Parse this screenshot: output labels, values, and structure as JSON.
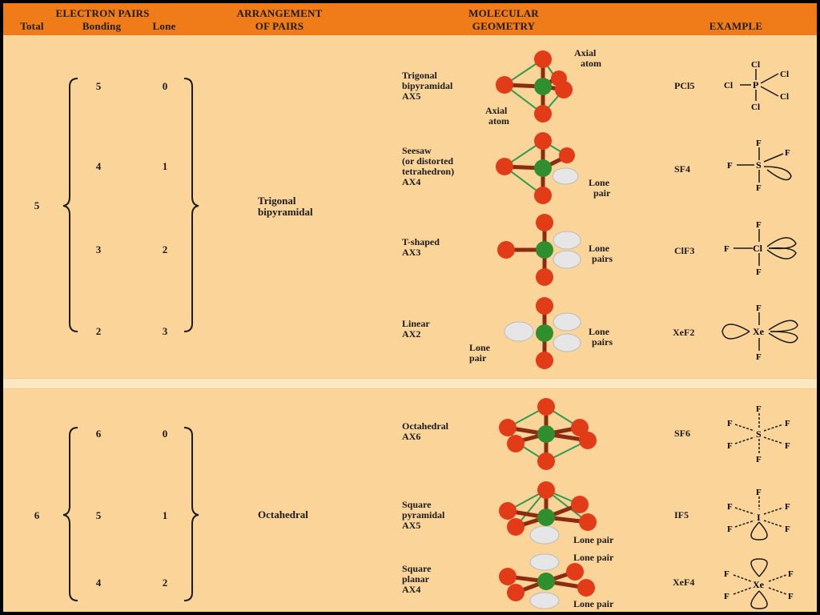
{
  "header": {
    "electron_pairs": "ELECTRON PAIRS",
    "total": "Total",
    "bonding": "Bonding",
    "lone": "Lone",
    "arrangement": [
      "ARRANGEMENT",
      "OF PAIRS"
    ],
    "geometry": [
      "MOLECULAR",
      "GEOMETRY"
    ],
    "example": "EXAMPLE"
  },
  "colors": {
    "header": "#ef7c19",
    "background": "#fbd49a",
    "outer_atom": "#e23b18",
    "central_atom": "#2f8f2f",
    "bond": "#2e9b4e",
    "lone_pair": "#e6e6e6"
  },
  "groups": [
    {
      "total": "5",
      "arrangement": [
        "Trigonal",
        "bipyramidal"
      ],
      "rows": [
        {
          "bonding": "5",
          "lone": "0",
          "geometry": [
            "Trigonal",
            "bipyramidal",
            "AX5"
          ],
          "example": "PCl5",
          "example_central": "P",
          "example_ligand": "Cl",
          "annotations": [
            "Axial",
            "atom",
            "Axial",
            "atom"
          ]
        },
        {
          "bonding": "4",
          "lone": "1",
          "geometry": [
            "Seesaw",
            "(or distorted",
            "tetrahedron)",
            "AX4"
          ],
          "example": "SF4",
          "example_central": "S",
          "example_ligand": "F",
          "annotations": [
            "Lone",
            "pair"
          ]
        },
        {
          "bonding": "3",
          "lone": "2",
          "geometry": [
            "T-shaped",
            "AX3"
          ],
          "example": "ClF3",
          "example_central": "Cl",
          "example_ligand": "F",
          "annotations": [
            "Lone",
            "pairs"
          ]
        },
        {
          "bonding": "2",
          "lone": "3",
          "geometry": [
            "Linear",
            "AX2"
          ],
          "example": "XeF2",
          "example_central": "Xe",
          "example_ligand": "F",
          "annotations": [
            "Lone",
            "pair",
            "Lone",
            "pairs"
          ]
        }
      ]
    },
    {
      "total": "6",
      "arrangement": [
        "Octahedral"
      ],
      "rows": [
        {
          "bonding": "6",
          "lone": "0",
          "geometry": [
            "Octahedral",
            "AX6"
          ],
          "example": "SF6",
          "example_central": "S",
          "example_ligand": "F",
          "annotations": []
        },
        {
          "bonding": "5",
          "lone": "1",
          "geometry": [
            "Square",
            "pyramidal",
            "AX5"
          ],
          "example": "IF5",
          "example_central": "I",
          "example_ligand": "F",
          "annotations": [
            "Lone pair"
          ]
        },
        {
          "bonding": "4",
          "lone": "2",
          "geometry": [
            "Square",
            "planar",
            "AX4"
          ],
          "example": "XeF4",
          "example_central": "Xe",
          "example_ligand": "F",
          "annotations": [
            "Lone pair",
            "Lone pair"
          ]
        }
      ]
    }
  ]
}
